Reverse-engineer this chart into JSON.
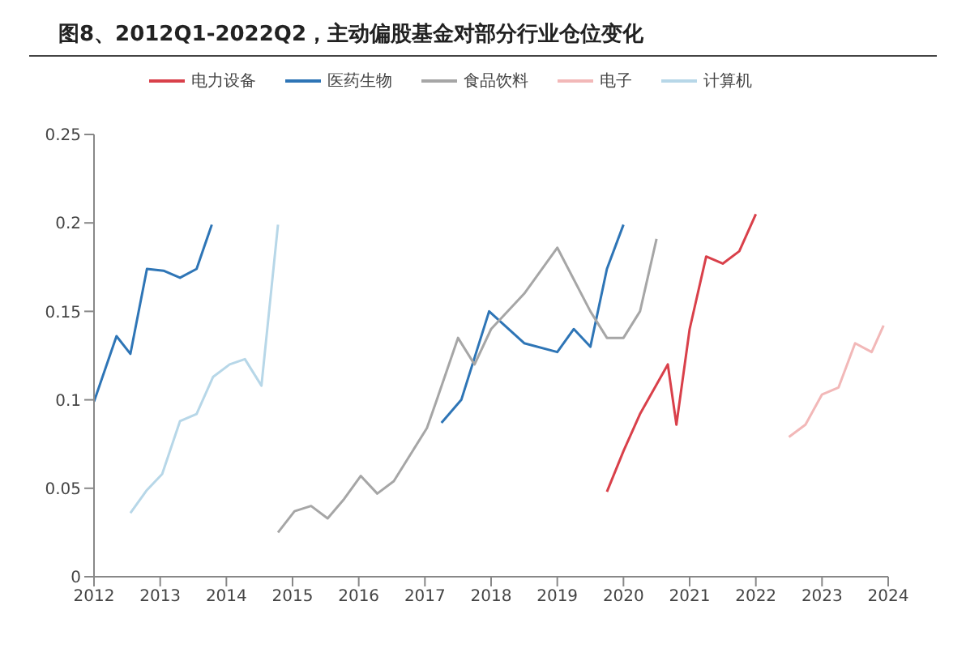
{
  "chart_data": {
    "type": "line",
    "title": "图8、2012Q1-2022Q2，主动偏股基金对部分行业仓位变化",
    "series": [
      {
        "name": "电力设备",
        "color": "#d9404a",
        "x": [
          2019.75,
          2020,
          2020.25,
          2020.67,
          2020.8,
          2021,
          2021.25,
          2021.5,
          2021.75,
          2022
        ],
        "values": [
          0.048,
          0.071,
          0.092,
          0.12,
          0.086,
          0.14,
          0.181,
          0.177,
          0.184,
          0.205
        ]
      },
      {
        "name": "医药生物",
        "color": "#2e75b6",
        "x": [
          2012,
          2012.34,
          2012.55,
          2012.8,
          2013.05,
          2013.3,
          2013.55,
          2013.78,
          2015.5,
          2017.25,
          2017.55,
          2017.97,
          2018.5,
          2019,
          2019.25,
          2019.5,
          2019.75,
          2020
        ],
        "values": [
          0.099,
          0.136,
          0.126,
          0.174,
          0.173,
          0.169,
          0.174,
          0.199,
          null,
          0.087,
          0.1,
          0.15,
          0.132,
          0.127,
          0.14,
          0.13,
          0.174,
          0.199
        ]
      },
      {
        "name": "食品饮料",
        "color": "#a6a6a6",
        "x": [
          2014.78,
          2015.03,
          2015.28,
          2015.53,
          2015.78,
          2016.03,
          2016.28,
          2016.53,
          2016.78,
          2017.03,
          2017.18,
          2017.5,
          2017.75,
          2018,
          2018.5,
          2019,
          2019.5,
          2019.75,
          2020,
          2020.25,
          2020.5
        ],
        "values": [
          0.025,
          0.037,
          0.04,
          0.033,
          0.044,
          0.057,
          0.047,
          0.054,
          0.069,
          0.084,
          0.1,
          0.135,
          0.12,
          0.14,
          0.16,
          0.186,
          0.15,
          0.135,
          0.135,
          0.15,
          0.191
        ]
      },
      {
        "name": "电子",
        "color": "#f2b8b8",
        "x": [
          2022.5,
          2022.75,
          2023,
          2023.25,
          2023.5,
          2023.75,
          2023.93
        ],
        "values": [
          0.079,
          0.086,
          0.103,
          0.107,
          0.132,
          0.127,
          0.142
        ]
      },
      {
        "name": "计算机",
        "color": "#b7d7e8",
        "x": [
          2012.55,
          2012.8,
          2013.03,
          2013.3,
          2013.55,
          2013.8,
          2014.05,
          2014.28,
          2014.53,
          2014.78
        ],
        "values": [
          0.036,
          0.049,
          0.058,
          0.088,
          0.092,
          0.113,
          0.12,
          0.123,
          0.108,
          0.199
        ]
      }
    ],
    "xlim": [
      2012,
      2024
    ],
    "xticks": [
      2012,
      2013,
      2014,
      2015,
      2016,
      2017,
      2018,
      2019,
      2020,
      2021,
      2022,
      2023,
      2024
    ],
    "ylim": [
      0,
      0.25
    ],
    "yticks": [
      0,
      0.05,
      0.1,
      0.15,
      0.2,
      0.25
    ],
    "grid": false,
    "legend": "top",
    "marker": "none",
    "line_style": "solid"
  }
}
